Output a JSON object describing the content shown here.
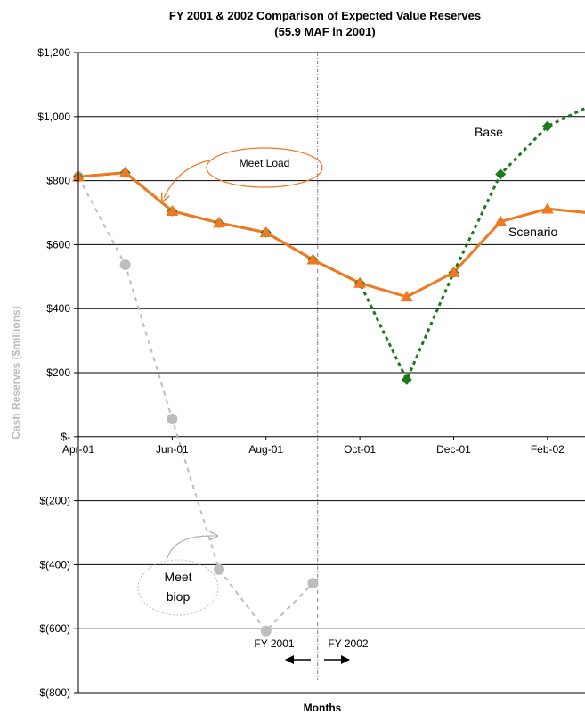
{
  "chart_data": {
    "type": "line",
    "title": "FY 2001 & 2002 Comparison of Expected Value Reserves",
    "subtitle": "(55.9 MAF in 2001)",
    "xlabel": "Months",
    "ylabel": "Cash Reserves ($millions)",
    "ylim": [
      -800,
      1200
    ],
    "ytick_values": [
      1200,
      1000,
      800,
      600,
      400,
      200,
      0,
      -200,
      -400,
      -600,
      -800
    ],
    "ytick_labels": [
      "$1,200",
      "$1,000",
      "$800",
      "$600",
      "$400",
      "$200",
      "$-",
      "$(200)",
      "$(400)",
      "$(600)",
      "$(800)"
    ],
    "x_month_range": [
      0,
      10.8
    ],
    "xtick_values": [
      0,
      2,
      4,
      6,
      8,
      10
    ],
    "xtick_labels": [
      "Apr-01",
      "Jun-01",
      "Aug-01",
      "Oct-01",
      "Dec-01",
      "Feb-02"
    ],
    "grid": "horizontal",
    "fy_divider_month": 5.1,
    "series": [
      {
        "name": "Scenario",
        "color": "#f07820",
        "marker": "triangle",
        "line": "solid",
        "x": [
          0,
          1,
          2,
          3,
          4,
          5,
          6,
          7,
          8,
          9,
          10,
          11
        ],
        "values": [
          812,
          825,
          705,
          668,
          638,
          553,
          480,
          437,
          513,
          672,
          712,
          698
        ]
      },
      {
        "name": "Base",
        "color": "#1a7a1a",
        "marker": "diamond",
        "line": "dotted",
        "x": [
          0,
          1,
          2,
          3,
          4,
          5,
          6,
          7,
          8,
          9,
          10,
          11
        ],
        "values": [
          812,
          825,
          705,
          668,
          638,
          553,
          480,
          178,
          513,
          820,
          970,
          1040
        ]
      },
      {
        "name": "",
        "color": "#bdbdbd",
        "marker": "circle",
        "line": "dashed",
        "x": [
          0,
          1,
          2,
          3,
          4,
          5
        ],
        "values": [
          812,
          537,
          55,
          -415,
          -607,
          -458
        ]
      }
    ],
    "annotations": {
      "meet_load": "Meet Load",
      "meet_biop_line1": "Meet",
      "meet_biop_line2": "biop",
      "fy_left": "FY 2001",
      "fy_right": "FY 2002"
    }
  }
}
